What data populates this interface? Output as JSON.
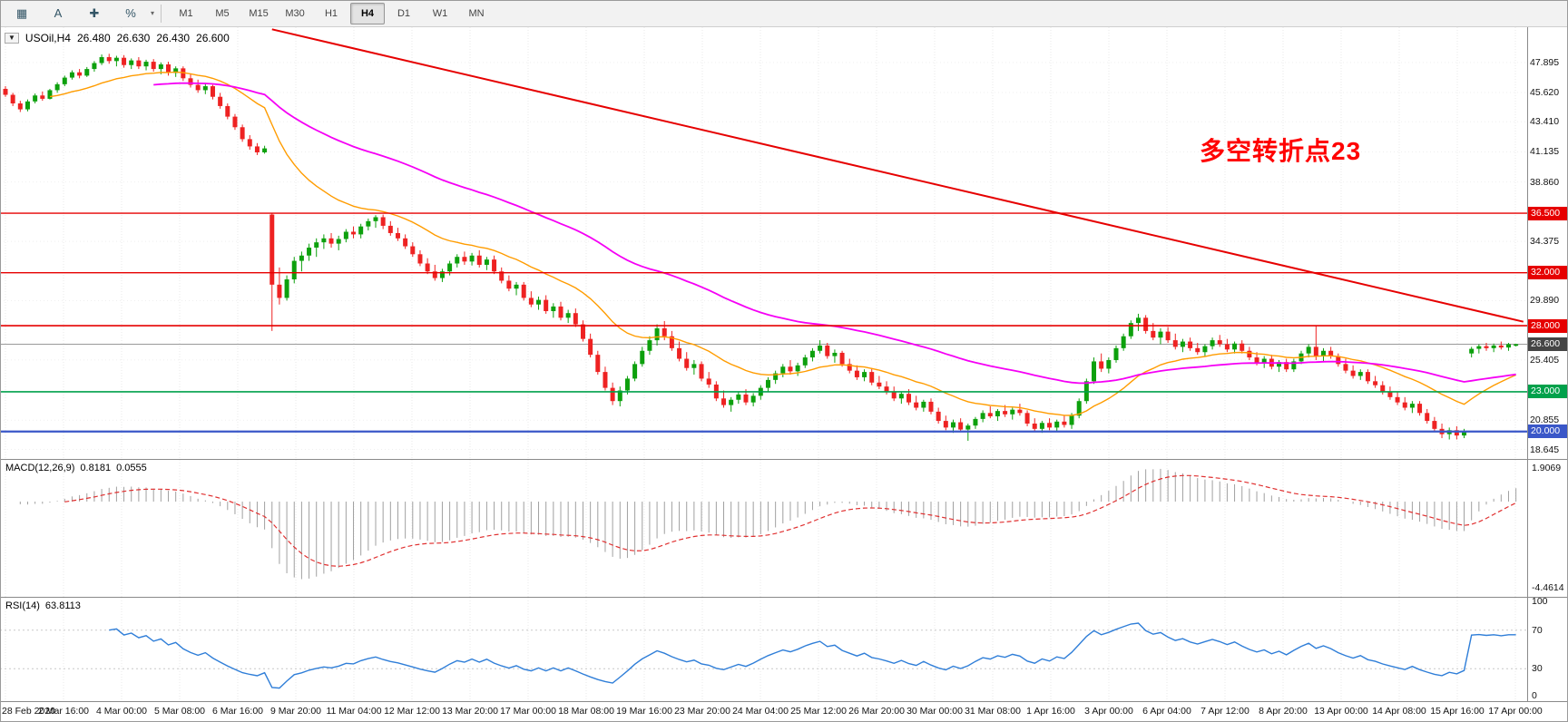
{
  "toolbar": {
    "left_icons": [
      {
        "name": "charts-grid-icon",
        "glyph": "▦"
      },
      {
        "name": "text-annotation-icon",
        "glyph": "A"
      },
      {
        "name": "crosshair-icon",
        "glyph": "✚"
      },
      {
        "name": "percent-tool-icon",
        "glyph": "%"
      }
    ],
    "caret_glyph": "▾",
    "timeframes": [
      {
        "label": "M1",
        "active": false
      },
      {
        "label": "M5",
        "active": false
      },
      {
        "label": "M15",
        "active": false
      },
      {
        "label": "M30",
        "active": false
      },
      {
        "label": "H1",
        "active": false
      },
      {
        "label": "H4",
        "active": true
      },
      {
        "label": "D1",
        "active": false
      },
      {
        "label": "W1",
        "active": false
      },
      {
        "label": "MN",
        "active": false
      }
    ]
  },
  "chart": {
    "header": {
      "collapse_glyph": "▼",
      "symbol_period": "USOil,H4",
      "open": "26.480",
      "high": "26.630",
      "low": "26.430",
      "close": "26.600"
    },
    "annotation": {
      "text": "多空转折点23",
      "color": "#ff0000"
    },
    "price_axis": {
      "ticks": [
        "47.895",
        "45.620",
        "43.410",
        "41.135",
        "38.860",
        "34.375",
        "29.890",
        "25.405",
        "20.855",
        "18.645"
      ]
    }
  },
  "indicators": {
    "macd": {
      "name": "MACD(12,26,9)",
      "value_main": "0.8181",
      "value_signal": "0.0555",
      "scale_top": "1.9069",
      "scale_bottom": "-4.4614"
    },
    "rsi": {
      "name": "RSI(14)",
      "value": "63.8113",
      "scale": [
        "100",
        "70",
        "30",
        "0"
      ]
    }
  },
  "chart_data": {
    "type": "candlestick",
    "symbol": "USOil",
    "timeframe": "H4",
    "title": "USOil,H4",
    "y_range": [
      18.2,
      49.6
    ],
    "candle_up_color": "#0da00d",
    "candle_down_color": "#ee2222",
    "grid_color": "#e8e8e8",
    "x_labels": [
      "28 Feb 2020",
      "2 Mar 16:00",
      "4 Mar 00:00",
      "5 Mar 08:00",
      "6 Mar 16:00",
      "9 Mar 20:00",
      "11 Mar 04:00",
      "12 Mar 12:00",
      "13 Mar 20:00",
      "17 Mar 00:00",
      "18 Mar 08:00",
      "19 Mar 16:00",
      "23 Mar 20:00",
      "24 Mar 04:00",
      "25 Mar 12:00",
      "26 Mar 20:00",
      "30 Mar 00:00",
      "31 Mar 08:00",
      "1 Apr 16:00",
      "3 Apr 00:00",
      "6 Apr 04:00",
      "7 Apr 12:00",
      "8 Apr 20:00",
      "13 Apr 00:00",
      "14 Apr 08:00",
      "15 Apr 16:00",
      "17 Apr 00:00"
    ],
    "ohlc": [
      [
        45.9,
        46.1,
        45.3,
        45.45
      ],
      [
        45.45,
        45.6,
        44.6,
        44.8
      ],
      [
        44.8,
        45.0,
        44.15,
        44.35
      ],
      [
        44.35,
        45.1,
        44.2,
        44.95
      ],
      [
        44.95,
        45.55,
        44.8,
        45.4
      ],
      [
        45.4,
        45.7,
        45.0,
        45.15
      ],
      [
        45.15,
        45.9,
        45.1,
        45.8
      ],
      [
        45.8,
        46.4,
        45.6,
        46.25
      ],
      [
        46.25,
        46.9,
        46.1,
        46.75
      ],
      [
        46.75,
        47.3,
        46.6,
        47.15
      ],
      [
        47.15,
        47.4,
        46.7,
        46.9
      ],
      [
        46.9,
        47.55,
        46.8,
        47.4
      ],
      [
        47.4,
        48.0,
        47.2,
        47.85
      ],
      [
        47.85,
        48.5,
        47.7,
        48.3
      ],
      [
        48.3,
        48.55,
        47.8,
        48.0
      ],
      [
        48.0,
        48.4,
        47.6,
        48.25
      ],
      [
        48.25,
        48.45,
        47.5,
        47.7
      ],
      [
        47.7,
        48.2,
        47.4,
        48.05
      ],
      [
        48.05,
        48.3,
        47.4,
        47.6
      ],
      [
        47.6,
        48.1,
        47.3,
        47.95
      ],
      [
        47.95,
        48.15,
        47.2,
        47.4
      ],
      [
        47.4,
        47.9,
        47.0,
        47.75
      ],
      [
        47.75,
        47.95,
        46.9,
        47.1
      ],
      [
        47.1,
        47.6,
        46.8,
        47.45
      ],
      [
        47.45,
        47.6,
        46.5,
        46.7
      ],
      [
        46.7,
        47.0,
        46.0,
        46.2
      ],
      [
        46.2,
        46.6,
        45.6,
        45.8
      ],
      [
        45.8,
        46.3,
        45.5,
        46.1
      ],
      [
        46.1,
        46.2,
        45.1,
        45.3
      ],
      [
        45.3,
        45.6,
        44.4,
        44.6
      ],
      [
        44.6,
        44.8,
        43.6,
        43.8
      ],
      [
        43.8,
        44.0,
        42.8,
        43.0
      ],
      [
        43.0,
        43.2,
        41.9,
        42.1
      ],
      [
        42.1,
        42.4,
        41.3,
        41.55
      ],
      [
        41.55,
        41.8,
        40.9,
        41.1
      ],
      [
        41.1,
        41.6,
        41.0,
        41.4
      ],
      [
        36.4,
        36.5,
        27.6,
        31.1
      ],
      [
        31.1,
        32.4,
        29.6,
        30.1
      ],
      [
        30.1,
        31.8,
        29.9,
        31.5
      ],
      [
        31.5,
        33.2,
        31.2,
        32.9
      ],
      [
        32.9,
        33.6,
        32.1,
        33.3
      ],
      [
        33.3,
        34.2,
        32.9,
        33.9
      ],
      [
        33.9,
        34.6,
        33.2,
        34.3
      ],
      [
        34.3,
        34.9,
        33.8,
        34.6
      ],
      [
        34.6,
        35.0,
        33.9,
        34.2
      ],
      [
        34.2,
        34.8,
        33.7,
        34.55
      ],
      [
        34.55,
        35.3,
        34.3,
        35.1
      ],
      [
        35.1,
        35.5,
        34.6,
        34.9
      ],
      [
        34.9,
        35.7,
        34.6,
        35.5
      ],
      [
        35.5,
        36.1,
        35.2,
        35.9
      ],
      [
        35.9,
        36.35,
        35.4,
        36.2
      ],
      [
        36.2,
        36.4,
        35.3,
        35.55
      ],
      [
        35.55,
        35.9,
        34.8,
        35.0
      ],
      [
        35.0,
        35.4,
        34.4,
        34.6
      ],
      [
        34.6,
        34.9,
        33.8,
        34.0
      ],
      [
        34.0,
        34.3,
        33.2,
        33.4
      ],
      [
        33.4,
        33.7,
        32.5,
        32.7
      ],
      [
        32.7,
        33.1,
        31.9,
        32.1
      ],
      [
        32.1,
        32.6,
        31.4,
        31.6
      ],
      [
        31.6,
        32.3,
        31.3,
        32.1
      ],
      [
        32.1,
        32.9,
        31.8,
        32.7
      ],
      [
        32.7,
        33.4,
        32.4,
        33.2
      ],
      [
        33.2,
        33.6,
        32.6,
        32.85
      ],
      [
        32.85,
        33.5,
        32.55,
        33.3
      ],
      [
        33.3,
        33.7,
        32.4,
        32.6
      ],
      [
        32.6,
        33.2,
        32.2,
        33.0
      ],
      [
        33.0,
        33.3,
        31.9,
        32.1
      ],
      [
        32.1,
        32.4,
        31.2,
        31.4
      ],
      [
        31.4,
        31.8,
        30.6,
        30.8
      ],
      [
        30.8,
        31.3,
        30.3,
        31.1
      ],
      [
        31.1,
        31.3,
        29.9,
        30.1
      ],
      [
        30.1,
        30.6,
        29.4,
        29.6
      ],
      [
        29.6,
        30.2,
        29.2,
        29.95
      ],
      [
        29.95,
        30.3,
        28.9,
        29.1
      ],
      [
        29.1,
        29.7,
        28.6,
        29.45
      ],
      [
        29.45,
        29.8,
        28.4,
        28.6
      ],
      [
        28.6,
        29.2,
        28.2,
        28.95
      ],
      [
        28.95,
        29.3,
        27.9,
        28.1
      ],
      [
        28.1,
        28.4,
        26.8,
        27.0
      ],
      [
        27.0,
        27.4,
        25.6,
        25.8
      ],
      [
        25.8,
        26.1,
        24.3,
        24.5
      ],
      [
        24.5,
        24.9,
        23.1,
        23.3
      ],
      [
        23.3,
        23.7,
        22.0,
        22.3
      ],
      [
        22.3,
        23.4,
        21.9,
        23.1
      ],
      [
        23.1,
        24.2,
        22.8,
        24.0
      ],
      [
        24.0,
        25.3,
        23.8,
        25.1
      ],
      [
        25.1,
        26.4,
        24.9,
        26.1
      ],
      [
        26.1,
        27.2,
        25.8,
        26.9
      ],
      [
        26.9,
        28.1,
        26.5,
        27.8
      ],
      [
        27.8,
        28.35,
        26.9,
        27.2
      ],
      [
        27.2,
        27.6,
        26.1,
        26.3
      ],
      [
        26.3,
        26.8,
        25.3,
        25.5
      ],
      [
        25.5,
        26.0,
        24.6,
        24.8
      ],
      [
        24.8,
        25.4,
        24.3,
        25.1
      ],
      [
        25.1,
        25.3,
        23.8,
        24.0
      ],
      [
        24.0,
        24.5,
        23.3,
        23.55
      ],
      [
        23.55,
        23.8,
        22.3,
        22.5
      ],
      [
        22.5,
        23.1,
        21.8,
        22.0
      ],
      [
        22.0,
        22.6,
        21.5,
        22.4
      ],
      [
        22.4,
        23.0,
        22.1,
        22.8
      ],
      [
        22.8,
        23.2,
        22.0,
        22.2
      ],
      [
        22.2,
        22.9,
        21.9,
        22.7
      ],
      [
        22.7,
        23.5,
        22.4,
        23.3
      ],
      [
        23.3,
        24.1,
        23.0,
        23.9
      ],
      [
        23.9,
        24.6,
        23.6,
        24.4
      ],
      [
        24.4,
        25.1,
        24.1,
        24.9
      ],
      [
        24.9,
        25.4,
        24.3,
        24.55
      ],
      [
        24.55,
        25.2,
        24.2,
        25.0
      ],
      [
        25.0,
        25.8,
        24.8,
        25.6
      ],
      [
        25.6,
        26.3,
        25.3,
        26.1
      ],
      [
        26.1,
        26.9,
        25.9,
        26.5
      ],
      [
        26.5,
        26.7,
        25.5,
        25.7
      ],
      [
        25.7,
        26.2,
        25.2,
        25.95
      ],
      [
        25.95,
        26.1,
        24.9,
        25.1
      ],
      [
        25.1,
        25.5,
        24.4,
        24.6
      ],
      [
        24.6,
        25.0,
        23.9,
        24.1
      ],
      [
        24.1,
        24.7,
        23.8,
        24.5
      ],
      [
        24.5,
        24.8,
        23.5,
        23.7
      ],
      [
        23.7,
        24.2,
        23.2,
        23.4
      ],
      [
        23.4,
        23.8,
        22.8,
        23.0
      ],
      [
        23.0,
        23.4,
        22.3,
        22.5
      ],
      [
        22.5,
        23.0,
        22.1,
        22.85
      ],
      [
        22.85,
        23.2,
        22.0,
        22.2
      ],
      [
        22.2,
        22.7,
        21.6,
        21.8
      ],
      [
        21.8,
        22.4,
        21.5,
        22.25
      ],
      [
        22.25,
        22.5,
        21.3,
        21.5
      ],
      [
        21.5,
        21.8,
        20.6,
        20.8
      ],
      [
        20.8,
        21.2,
        20.1,
        20.3
      ],
      [
        20.3,
        20.9,
        19.9,
        20.7
      ],
      [
        20.7,
        21.0,
        19.95,
        20.15
      ],
      [
        20.15,
        20.6,
        19.3,
        20.45
      ],
      [
        20.45,
        21.1,
        20.2,
        20.95
      ],
      [
        20.95,
        21.6,
        20.7,
        21.4
      ],
      [
        21.4,
        21.9,
        21.0,
        21.15
      ],
      [
        21.15,
        21.7,
        20.8,
        21.55
      ],
      [
        21.55,
        22.0,
        21.1,
        21.3
      ],
      [
        21.3,
        21.8,
        20.9,
        21.65
      ],
      [
        21.65,
        22.1,
        21.2,
        21.4
      ],
      [
        21.4,
        21.6,
        20.4,
        20.6
      ],
      [
        20.6,
        21.0,
        20.0,
        20.2
      ],
      [
        20.2,
        20.8,
        19.9,
        20.65
      ],
      [
        20.65,
        21.0,
        20.1,
        20.3
      ],
      [
        20.3,
        20.9,
        20.0,
        20.75
      ],
      [
        20.75,
        21.2,
        20.3,
        20.5
      ],
      [
        20.5,
        21.4,
        20.2,
        21.2
      ],
      [
        21.2,
        22.5,
        21.0,
        22.3
      ],
      [
        22.3,
        24.0,
        22.1,
        23.8
      ],
      [
        23.8,
        25.6,
        23.6,
        25.3
      ],
      [
        25.3,
        25.9,
        24.5,
        24.75
      ],
      [
        24.75,
        25.6,
        24.4,
        25.4
      ],
      [
        25.4,
        26.5,
        25.2,
        26.3
      ],
      [
        26.3,
        27.4,
        26.1,
        27.2
      ],
      [
        27.2,
        28.4,
        27.0,
        28.2
      ],
      [
        28.2,
        28.9,
        27.6,
        28.6
      ],
      [
        28.6,
        28.8,
        27.4,
        27.6
      ],
      [
        27.6,
        28.2,
        26.9,
        27.1
      ],
      [
        27.1,
        27.8,
        26.6,
        27.55
      ],
      [
        27.55,
        27.9,
        26.7,
        26.9
      ],
      [
        26.9,
        27.4,
        26.2,
        26.4
      ],
      [
        26.4,
        27.0,
        26.0,
        26.8
      ],
      [
        26.8,
        27.1,
        26.1,
        26.3
      ],
      [
        26.3,
        26.7,
        25.8,
        26.0
      ],
      [
        26.0,
        26.6,
        25.7,
        26.45
      ],
      [
        26.45,
        27.1,
        26.2,
        26.9
      ],
      [
        26.9,
        27.3,
        26.4,
        26.6
      ],
      [
        26.6,
        27.0,
        26.0,
        26.2
      ],
      [
        26.2,
        26.8,
        25.9,
        26.65
      ],
      [
        26.65,
        26.9,
        25.9,
        26.1
      ],
      [
        26.1,
        26.4,
        25.4,
        25.6
      ],
      [
        25.6,
        26.0,
        25.0,
        25.2
      ],
      [
        25.2,
        25.7,
        24.8,
        25.5
      ],
      [
        25.5,
        25.8,
        24.7,
        24.9
      ],
      [
        24.9,
        25.4,
        24.5,
        25.25
      ],
      [
        25.25,
        25.5,
        24.5,
        24.7
      ],
      [
        24.7,
        25.5,
        24.5,
        25.3
      ],
      [
        25.3,
        26.1,
        25.1,
        25.9
      ],
      [
        25.9,
        26.6,
        25.6,
        26.4
      ],
      [
        26.4,
        28.0,
        25.4,
        25.7
      ],
      [
        25.7,
        26.3,
        25.3,
        26.1
      ],
      [
        26.1,
        26.4,
        25.5,
        25.7
      ],
      [
        25.7,
        25.9,
        24.9,
        25.1
      ],
      [
        25.1,
        25.5,
        24.4,
        24.6
      ],
      [
        24.6,
        25.0,
        24.0,
        24.2
      ],
      [
        24.2,
        24.7,
        23.9,
        24.5
      ],
      [
        24.5,
        24.7,
        23.6,
        23.8
      ],
      [
        23.8,
        24.2,
        23.3,
        23.5
      ],
      [
        23.5,
        23.8,
        22.8,
        23.0
      ],
      [
        23.0,
        23.4,
        22.4,
        22.6
      ],
      [
        22.6,
        23.0,
        22.0,
        22.2
      ],
      [
        22.2,
        22.6,
        21.6,
        21.8
      ],
      [
        21.8,
        22.3,
        21.4,
        22.1
      ],
      [
        22.1,
        22.3,
        21.2,
        21.4
      ],
      [
        21.4,
        21.7,
        20.6,
        20.8
      ],
      [
        20.8,
        21.1,
        20.0,
        20.2
      ],
      [
        20.2,
        20.6,
        19.5,
        19.8
      ],
      [
        19.8,
        20.3,
        19.4,
        20.1
      ],
      [
        20.1,
        20.4,
        19.4,
        19.7
      ],
      [
        19.7,
        20.2,
        19.5,
        20.0
      ],
      [
        25.9,
        26.4,
        25.6,
        26.25
      ],
      [
        26.25,
        26.6,
        25.9,
        26.45
      ],
      [
        26.45,
        26.7,
        26.1,
        26.3
      ],
      [
        26.3,
        26.65,
        26.0,
        26.5
      ],
      [
        26.5,
        26.8,
        26.2,
        26.35
      ],
      [
        26.35,
        26.7,
        26.1,
        26.6
      ],
      [
        26.48,
        26.63,
        26.43,
        26.6
      ]
    ],
    "overlays": {
      "ma_fast": {
        "period": 20,
        "color": "#ff9c00"
      },
      "ma_slow": {
        "period": 60,
        "color": "#f500f5"
      },
      "hlines": [
        {
          "value": 36.5,
          "label": "36.500",
          "color": "#e60000",
          "width": 1.4
        },
        {
          "value": 32.0,
          "label": "32.000",
          "color": "#e60000",
          "width": 1.4
        },
        {
          "value": 28.0,
          "label": "28.000",
          "color": "#e60000",
          "width": 1.6
        },
        {
          "value": 23.0,
          "label": "23.000",
          "color": "#00a14b",
          "width": 1.6
        },
        {
          "value": 20.0,
          "label": "20.000",
          "color": "#3a57c8",
          "width": 2.2
        }
      ],
      "trendline": {
        "from_index": 36,
        "from_price": 50.4,
        "to_index": 205,
        "to_price": 28.3,
        "color": "#e60000",
        "width": 2
      },
      "current_price": {
        "value": 26.6,
        "label": "26.600",
        "line_color": "#9a9a9a",
        "badge_color": "#454545"
      }
    },
    "indicator_settings": {
      "macd": {
        "fast": 12,
        "slow": 26,
        "signal": 9,
        "y_max": 1.9069,
        "y_min": -4.4614,
        "histogram_color": "#a0a0a0",
        "signal_color": "#e03030"
      },
      "rsi": {
        "period": 14,
        "range": [
          0,
          100
        ],
        "levels": [
          70,
          30
        ],
        "color": "#2f7ed8",
        "level_color": "#c8c8c8"
      }
    }
  }
}
